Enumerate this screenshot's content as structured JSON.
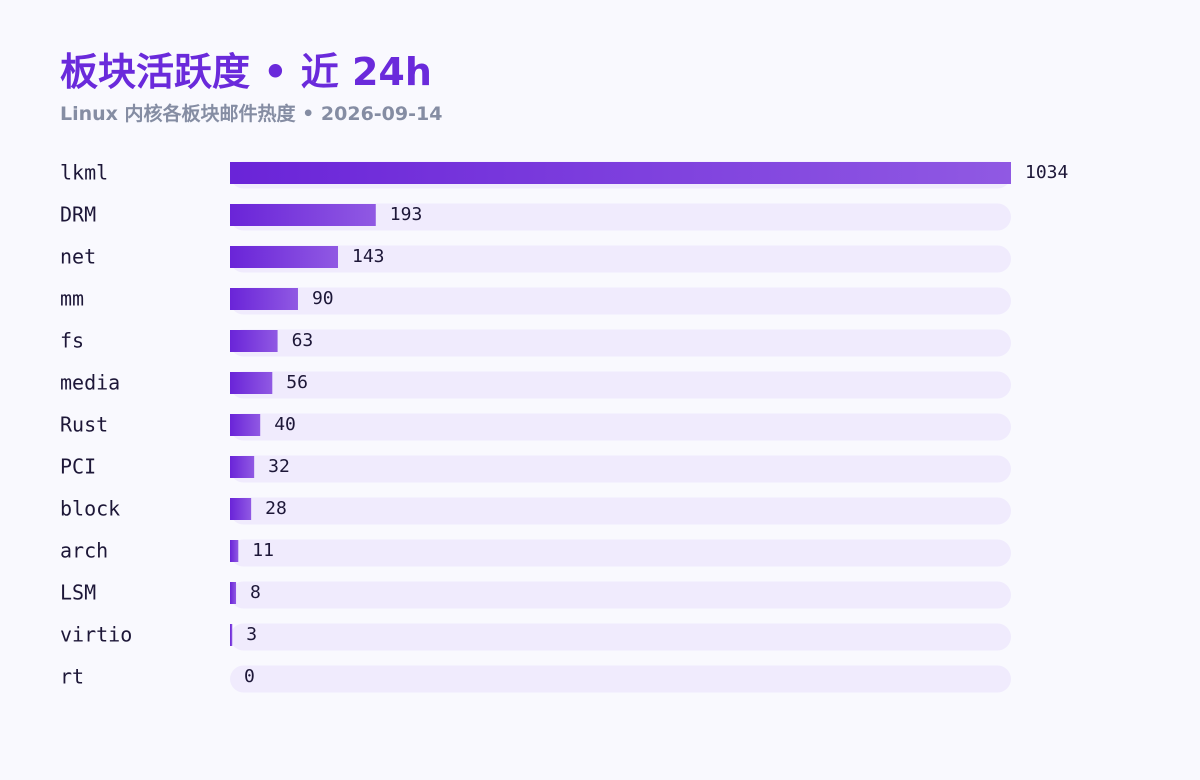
{
  "chart_data": {
    "type": "bar",
    "orientation": "horizontal",
    "title": "板块活跃度 • 近 24h",
    "subtitle": "Linux 内核各板块邮件热度 • 2026-09-14",
    "categories": [
      "lkml",
      "DRM",
      "net",
      "mm",
      "fs",
      "media",
      "Rust",
      "PCI",
      "block",
      "arch",
      "LSM",
      "virtio",
      "rt"
    ],
    "values": [
      1034,
      193,
      143,
      90,
      63,
      56,
      40,
      32,
      28,
      11,
      8,
      3,
      0
    ],
    "xlim": [
      0,
      1034
    ],
    "grid": false,
    "legend": "none"
  },
  "colors": {
    "title": "#6a2adb",
    "subtitle": "#858da3",
    "bar_start": "#6a24d8",
    "bar_end": "#9059e3",
    "track": "#f0ebfd",
    "label": "#1d1738",
    "background": "#f9f9fe"
  }
}
